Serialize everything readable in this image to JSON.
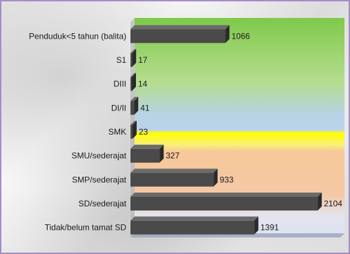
{
  "chart_data": {
    "type": "bar",
    "orientation": "horizontal",
    "categories": [
      "Penduduk<5 tahun (balita)",
      "S1",
      "DIII",
      "DI/II",
      "SMK",
      "SMU/sederajat",
      "SMP/sederajat",
      "SD/sederajat",
      "Tidak/belum tamat SD"
    ],
    "values": [
      1066,
      17,
      14,
      41,
      23,
      327,
      933,
      2104,
      1391
    ],
    "value_labels": [
      "1066",
      "17",
      "14",
      "41",
      "23",
      "327",
      "933",
      "2104",
      "1391"
    ],
    "xlim": [
      0,
      2200
    ],
    "grid": false,
    "legend": "none",
    "colors": {
      "bar": "#4a4a4a",
      "bar_top": "#6b6b6b",
      "bar_side": "#2b2b2b",
      "plot_bands": [
        "#7ec94a",
        "#c5e8a8",
        "#b4cfe6",
        "#ffff00",
        "#f4c79c",
        "#dfe3ef"
      ],
      "frame": "#a48cc8"
    }
  }
}
